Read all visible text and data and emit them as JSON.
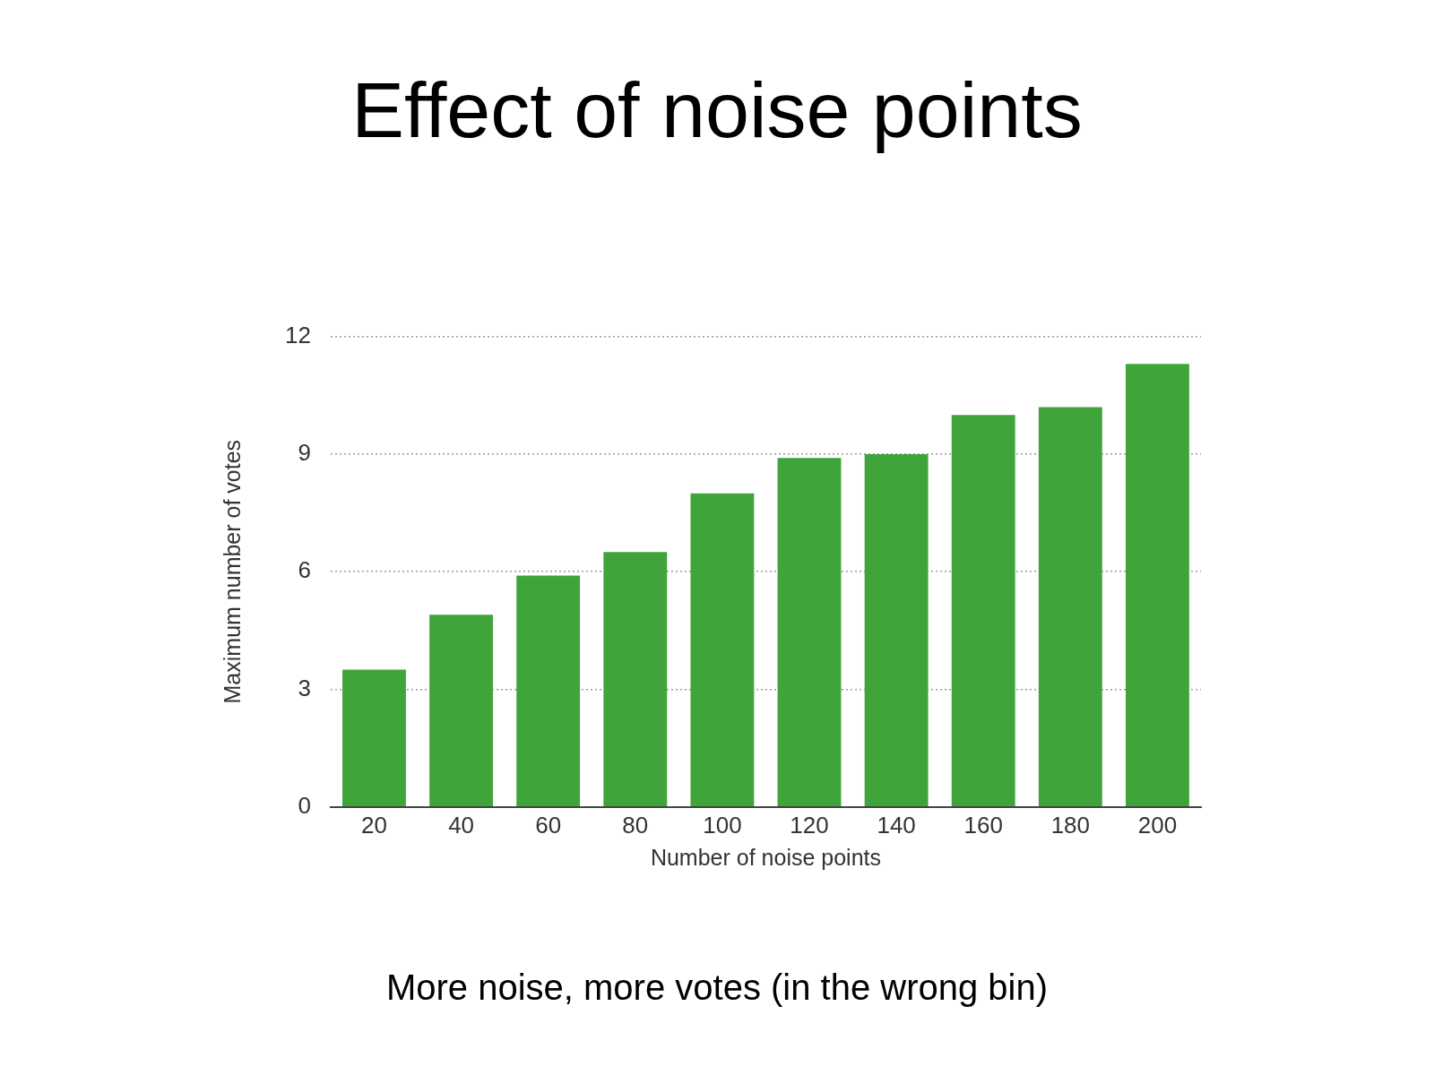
{
  "chart_data": {
    "type": "bar",
    "title": "Effect of noise points",
    "xlabel": "Number of noise points",
    "ylabel": "Maximum number of votes",
    "categories": [
      "20",
      "40",
      "60",
      "80",
      "100",
      "120",
      "140",
      "160",
      "180",
      "200"
    ],
    "values": [
      3.5,
      4.9,
      5.9,
      6.5,
      8.0,
      8.9,
      9.0,
      10.0,
      10.2,
      11.3
    ],
    "color": "#3fa53a",
    "ylim": [
      0,
      12
    ],
    "yticks": [
      0,
      3,
      6,
      9,
      12
    ],
    "grid": "y",
    "annotations": [
      "More noise, more votes (in the wrong bin)"
    ]
  }
}
